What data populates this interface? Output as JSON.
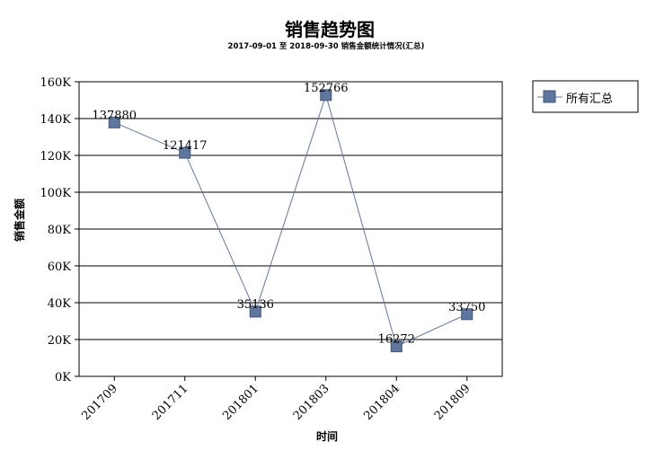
{
  "chart_data": {
    "type": "line",
    "title": "销售趋势图",
    "subtitle": "2017-09-01 至 2018-09-30   销售金额统计情况(汇总)",
    "xlabel": "时间",
    "ylabel": "销售金额",
    "categories": [
      "201709",
      "201711",
      "201801",
      "201803",
      "201804",
      "201809"
    ],
    "series": [
      {
        "name": "所有汇总",
        "values": [
          137880,
          121417,
          35136,
          152766,
          16272,
          33750
        ],
        "labels": [
          "137880",
          "121417",
          "35136",
          "152766",
          "16272",
          "33750"
        ]
      }
    ],
    "ylim": [
      0,
      160000
    ],
    "yticks": [
      0,
      20000,
      40000,
      60000,
      80000,
      100000,
      120000,
      140000,
      160000
    ],
    "ytick_labels": [
      "0K",
      "20K",
      "40K",
      "60K",
      "80K",
      "100K",
      "120K",
      "140K",
      "160K"
    ],
    "grid": true,
    "legend": "top-right",
    "colors": {
      "series": "#5F779F",
      "marker_stroke": "#3E5478",
      "grid": "#000000"
    }
  }
}
